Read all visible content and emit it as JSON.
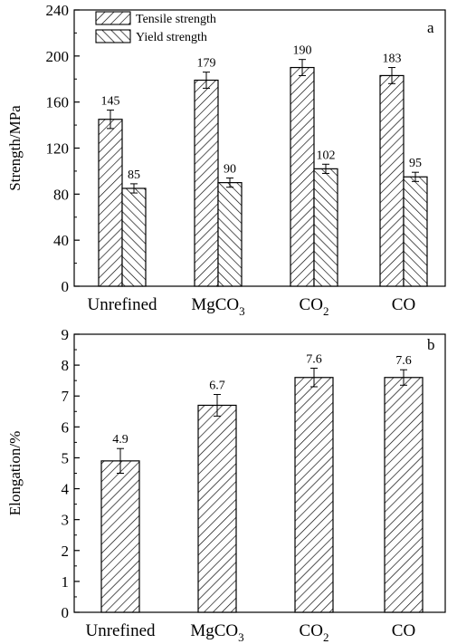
{
  "chart_data": [
    {
      "type": "bar",
      "panel_label": "a",
      "ylabel": "Strength/MPa",
      "ylim": [
        0,
        240
      ],
      "yticks": [
        "0",
        "40",
        "80",
        "120",
        "160",
        "200",
        "240"
      ],
      "categories": [
        "Unrefined",
        "MgCO3",
        "CO2",
        "CO"
      ],
      "category_labels": [
        {
          "main": "Unrefined",
          "sub": ""
        },
        {
          "main": "MgCO",
          "sub": "3"
        },
        {
          "main": "CO",
          "sub": "2"
        },
        {
          "main": "CO",
          "sub": ""
        }
      ],
      "legend_position": "top-left",
      "series": [
        {
          "name": "Tensile strength",
          "pattern": "forward-hatch",
          "values": [
            145,
            179,
            190,
            183
          ],
          "errors": [
            8,
            7,
            7,
            7
          ],
          "labels": [
            "145",
            "179",
            "190",
            "183"
          ]
        },
        {
          "name": "Yield strength",
          "pattern": "back-hatch",
          "values": [
            85,
            90,
            102,
            95
          ],
          "errors": [
            4,
            4,
            4,
            4
          ],
          "labels": [
            "85",
            "90",
            "102",
            "95"
          ]
        }
      ]
    },
    {
      "type": "bar",
      "panel_label": "b",
      "ylabel": "Elongation/%",
      "ylim": [
        0,
        9
      ],
      "yticks": [
        "0",
        "1",
        "2",
        "3",
        "4",
        "5",
        "6",
        "7",
        "8",
        "9"
      ],
      "categories": [
        "Unrefined",
        "MgCO3",
        "CO2",
        "CO"
      ],
      "category_labels": [
        {
          "main": "Unrefined",
          "sub": ""
        },
        {
          "main": "MgCO",
          "sub": "3"
        },
        {
          "main": "CO",
          "sub": "2"
        },
        {
          "main": "CO",
          "sub": ""
        }
      ],
      "series": [
        {
          "pattern": "forward-hatch",
          "values": [
            4.9,
            6.7,
            7.6,
            7.6
          ],
          "errors": [
            0.4,
            0.35,
            0.3,
            0.25
          ],
          "labels": [
            "4.9",
            "6.7",
            "7.6",
            "7.6"
          ]
        }
      ]
    }
  ]
}
